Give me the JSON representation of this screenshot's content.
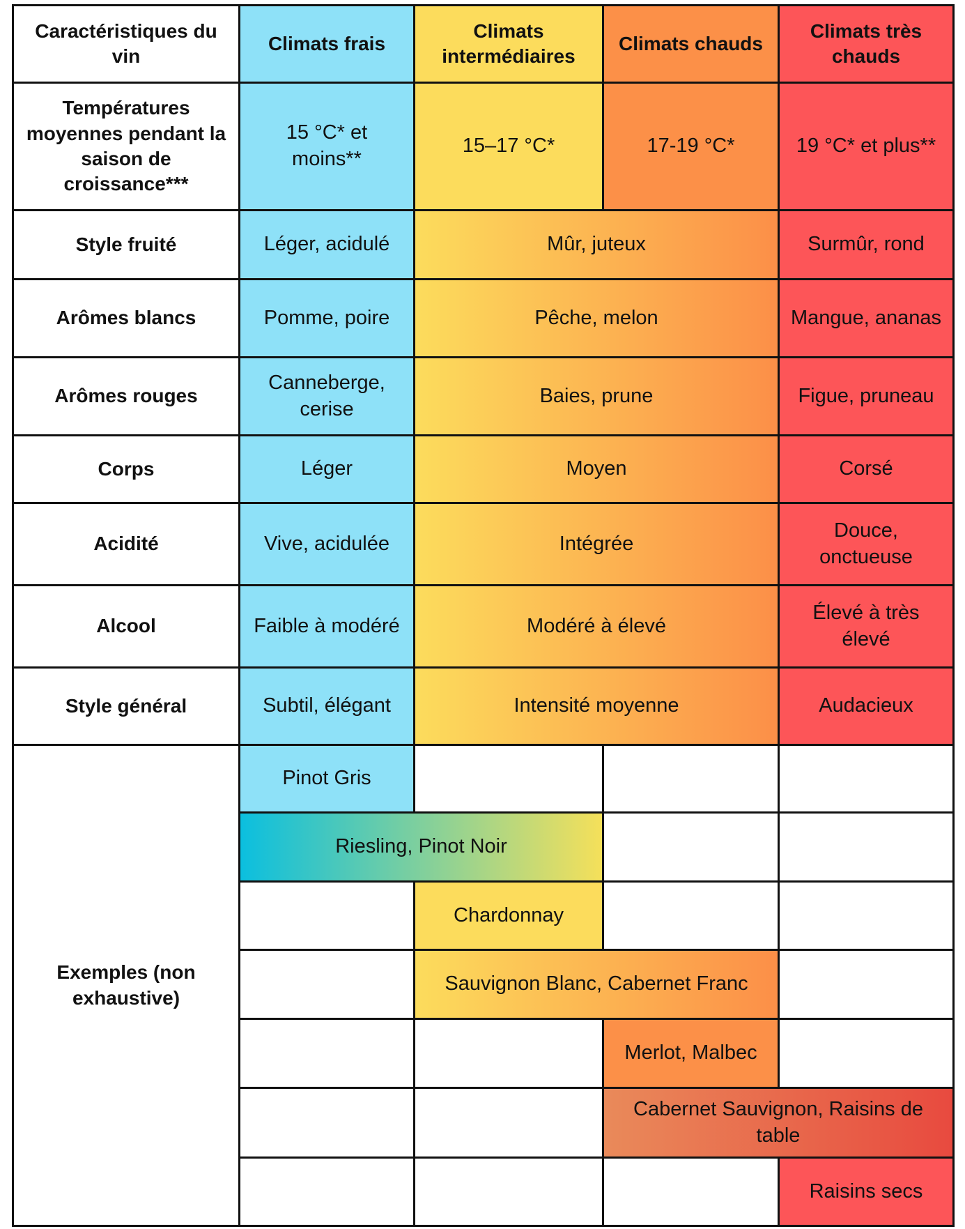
{
  "header": [
    "Caractéristiques du vin",
    "Climats frais",
    "Climats intermédiaires",
    "Climats chauds",
    "Climats très chauds"
  ],
  "rows": [
    {
      "label": "Températures moyennes pendant la saison de croissance***",
      "cells": [
        "15 °C* et moins**",
        "15–17 °C*",
        "17-19 °C*",
        "19 °C* et plus**"
      ]
    },
    {
      "label": "Style fruité",
      "cells": [
        "Léger, acidulé",
        "Mûr, juteux",
        "Surmûr, rond"
      ]
    },
    {
      "label": "Arômes blancs",
      "cells": [
        "Pomme, poire",
        "Pêche, melon",
        "Mangue, ananas"
      ]
    },
    {
      "label": "Arômes rouges",
      "cells": [
        "Canneberge, cerise",
        "Baies, prune",
        "Figue, pruneau"
      ]
    },
    {
      "label": "Corps",
      "cells": [
        "Léger",
        "Moyen",
        "Corsé"
      ]
    },
    {
      "label": "Acidité",
      "cells": [
        "Vive, acidulée",
        "Intégrée",
        "Douce, onctueuse"
      ]
    },
    {
      "label": "Alcool",
      "cells": [
        "Faible à modéré",
        "Modéré à élevé",
        "Élevé à très élevé"
      ]
    },
    {
      "label": "Style général",
      "cells": [
        "Subtil, élégant",
        "Intensité moyenne",
        "Audacieux"
      ]
    }
  ],
  "examples": {
    "label": "Exemples (non exhaustive)",
    "items": [
      "Pinot Gris",
      "Riesling, Pinot Noir",
      "Chardonnay",
      "Sauvignon Blanc, Cabernet Franc",
      "Merlot, Malbec",
      "Cabernet Sauvignon, Raisins de table",
      "Raisins secs"
    ]
  }
}
